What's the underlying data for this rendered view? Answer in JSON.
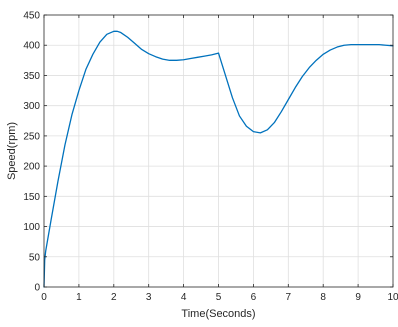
{
  "chart_data": {
    "type": "line",
    "xlabel": "Time(Seconds)",
    "ylabel": "Speed(rpm)",
    "xlim": [
      0,
      10
    ],
    "ylim": [
      0,
      450
    ],
    "xticks": [
      0,
      1,
      2,
      3,
      4,
      5,
      6,
      7,
      8,
      9,
      10
    ],
    "yticks": [
      0,
      50,
      100,
      150,
      200,
      250,
      300,
      350,
      400,
      450
    ],
    "grid": true,
    "line_color": "#0072BD",
    "series": [
      {
        "x": [
          0,
          0.02,
          0.05,
          0.2,
          0.4,
          0.6,
          0.8,
          1.0,
          1.2,
          1.4,
          1.6,
          1.8,
          2.0,
          2.1,
          2.2,
          2.4,
          2.6,
          2.8,
          3.0,
          3.2,
          3.4,
          3.6,
          3.8,
          4.0,
          4.2,
          4.4,
          4.6,
          4.8,
          5.0,
          5.2,
          5.4,
          5.6,
          5.8,
          6.0,
          6.2,
          6.4,
          6.6,
          6.8,
          7.0,
          7.2,
          7.4,
          7.6,
          7.8,
          8.0,
          8.2,
          8.4,
          8.6,
          8.8,
          9.0,
          9.2,
          9.4,
          9.6,
          9.8,
          10.0
        ],
        "y": [
          0,
          45,
          60,
          110,
          175,
          235,
          285,
          325,
          360,
          385,
          405,
          418,
          423,
          423,
          421,
          413,
          403,
          393,
          386,
          381,
          377,
          375,
          375,
          376,
          378,
          380,
          382,
          384,
          387,
          350,
          313,
          283,
          266,
          257,
          255,
          260,
          272,
          290,
          310,
          330,
          348,
          363,
          375,
          385,
          392,
          397,
          400,
          401,
          401,
          401,
          401,
          401,
          400,
          399
        ]
      }
    ]
  }
}
